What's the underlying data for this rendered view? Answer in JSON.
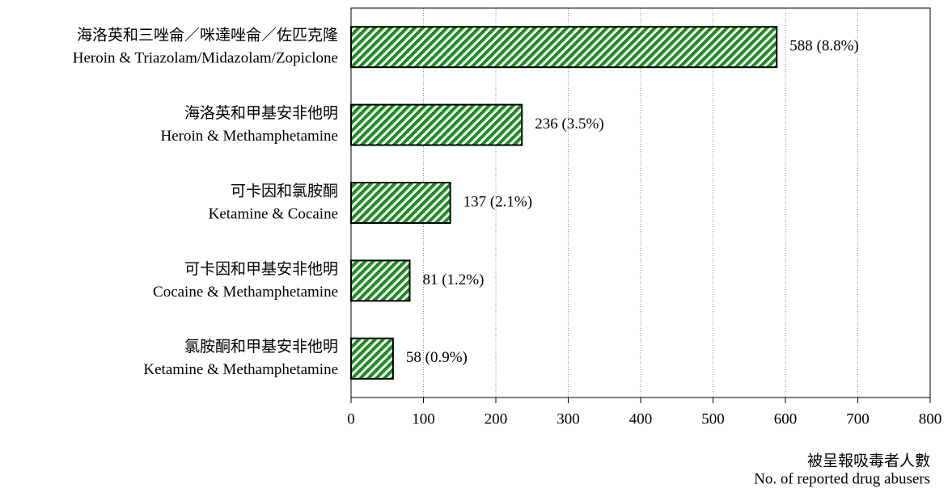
{
  "chart_data": {
    "type": "barh",
    "categories": [
      [
        "海洛英和三唑侖／咪達唑侖／佐匹克隆",
        "Heroin & Triazolam/Midazolam/Zopiclone"
      ],
      [
        "海洛英和甲基安非他明",
        "Heroin & Methamphetamine"
      ],
      [
        "可卡因和氯胺酮",
        "Ketamine & Cocaine"
      ],
      [
        "可卡因和甲基安非他明",
        "Cocaine & Methamphetamine"
      ],
      [
        "氯胺酮和甲基安非他明",
        "Ketamine & Methamphetamine"
      ]
    ],
    "values": [
      588,
      236,
      137,
      81,
      58
    ],
    "value_labels": [
      "588 (8.8%)",
      "236 (3.5%)",
      "137 (2.1%)",
      "81 (1.2%)",
      "58 (0.9%)"
    ],
    "color": "#1e8c1e",
    "xlim": [
      0,
      800
    ],
    "xticks": [
      0,
      100,
      200,
      300,
      400,
      500,
      600,
      700,
      800
    ],
    "grid": true,
    "xlabel": [
      "被呈報吸毒者人數",
      "No. of reported drug abusers"
    ]
  }
}
